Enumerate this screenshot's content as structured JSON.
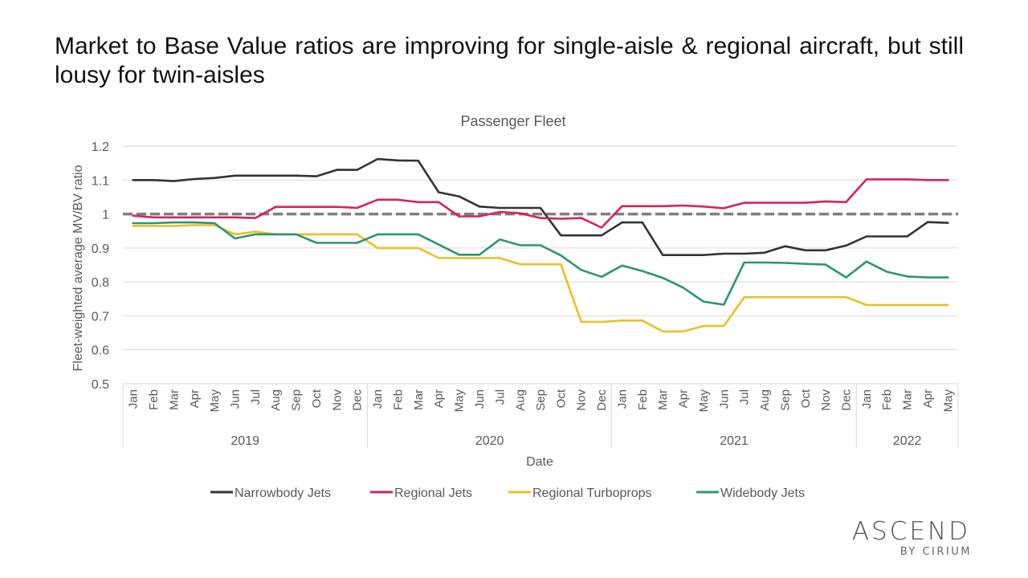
{
  "slide": {
    "headline": "Market to Base Value ratios are improving for single-aisle & regional aircraft, but still lousy for twin-aisles"
  },
  "brand": {
    "name": "ASCEND",
    "tagline": "BY CIRIUM"
  },
  "chart_data": {
    "type": "line",
    "title": "Passenger Fleet",
    "xlabel": "Date",
    "ylabel": "Fleet-weighted average MV/BV ratio",
    "ylim": [
      0.5,
      1.2
    ],
    "yticks": [
      0.5,
      0.6,
      0.7,
      0.8,
      0.9,
      1,
      1.1,
      1.2
    ],
    "ytick_labels": [
      "0.5",
      "0.6",
      "0.7",
      "0.8",
      "0.9",
      "1",
      "1.1",
      "1.2"
    ],
    "grid": "horizontal",
    "legend_position": "bottom",
    "reference_line": {
      "y": 1.0,
      "style": "dashed",
      "color": "#7f7f7f"
    },
    "x": [
      "Jan",
      "Feb",
      "Mar",
      "Apr",
      "May",
      "Jun",
      "Jul",
      "Aug",
      "Sep",
      "Oct",
      "Nov",
      "Dec",
      "Jan",
      "Feb",
      "Mar",
      "Apr",
      "May",
      "Jun",
      "Jul",
      "Aug",
      "Sep",
      "Oct",
      "Nov",
      "Dec",
      "Jan",
      "Feb",
      "Mar",
      "Apr",
      "May",
      "Jun",
      "Jul",
      "Aug",
      "Sep",
      "Oct",
      "Nov",
      "Dec",
      "Jan",
      "Feb",
      "Mar",
      "Apr",
      "May"
    ],
    "year_groups": [
      {
        "label": "2019",
        "count": 12
      },
      {
        "label": "2020",
        "count": 12
      },
      {
        "label": "2021",
        "count": 12
      },
      {
        "label": "2022",
        "count": 5
      }
    ],
    "series": [
      {
        "name": "Narrowbody Jets",
        "color": "#333333",
        "values": [
          1.1,
          1.1,
          1.097,
          1.103,
          1.106,
          1.113,
          1.113,
          1.113,
          1.113,
          1.111,
          1.13,
          1.13,
          1.162,
          1.158,
          1.157,
          1.064,
          1.052,
          1.022,
          1.018,
          1.018,
          1.018,
          0.937,
          0.937,
          0.937,
          0.975,
          0.975,
          0.879,
          0.879,
          0.879,
          0.883,
          0.883,
          0.886,
          0.905,
          0.893,
          0.893,
          0.907,
          0.934,
          0.934,
          0.934,
          0.976,
          0.974
        ]
      },
      {
        "name": "Regional Jets",
        "color": "#d4245a",
        "values": [
          0.995,
          0.99,
          0.99,
          0.99,
          0.99,
          0.99,
          0.988,
          1.021,
          1.021,
          1.021,
          1.021,
          1.018,
          1.042,
          1.042,
          1.035,
          1.035,
          0.993,
          0.993,
          1.006,
          1.002,
          0.988,
          0.986,
          0.988,
          0.96,
          1.023,
          1.023,
          1.023,
          1.025,
          1.022,
          1.017,
          1.033,
          1.033,
          1.033,
          1.033,
          1.037,
          1.035,
          1.102,
          1.102,
          1.102,
          1.1,
          1.1
        ]
      },
      {
        "name": "Regional Turboprops",
        "color": "#e8c124",
        "values": [
          0.965,
          0.965,
          0.965,
          0.967,
          0.967,
          0.94,
          0.948,
          0.94,
          0.94,
          0.94,
          0.94,
          0.94,
          0.9,
          0.9,
          0.9,
          0.87,
          0.87,
          0.87,
          0.87,
          0.852,
          0.852,
          0.852,
          0.682,
          0.682,
          0.686,
          0.686,
          0.654,
          0.654,
          0.67,
          0.67,
          0.755,
          0.755,
          0.755,
          0.755,
          0.755,
          0.755,
          0.732,
          0.732,
          0.732,
          0.732,
          0.732
        ]
      },
      {
        "name": "Widebody Jets",
        "color": "#2e9472",
        "values": [
          0.973,
          0.973,
          0.975,
          0.975,
          0.973,
          0.928,
          0.94,
          0.94,
          0.94,
          0.915,
          0.915,
          0.915,
          0.94,
          0.94,
          0.94,
          0.91,
          0.88,
          0.88,
          0.925,
          0.908,
          0.908,
          0.878,
          0.835,
          0.815,
          0.848,
          0.832,
          0.812,
          0.783,
          0.742,
          0.733,
          0.857,
          0.857,
          0.856,
          0.853,
          0.851,
          0.813,
          0.86,
          0.83,
          0.816,
          0.813,
          0.813
        ]
      }
    ]
  }
}
